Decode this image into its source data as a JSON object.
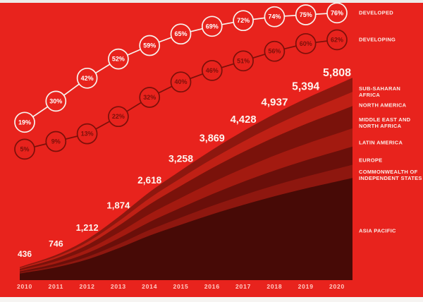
{
  "colors": {
    "background": "#e8231d",
    "developed_line": "#f8f3ee",
    "developed_text": "#ffffff",
    "developing_line": "#7c100a",
    "developing_text": "#7c100a",
    "total_label_text": "#fdf4ef",
    "year_text": "#ffccc5",
    "legend_text": "#fbeee9"
  },
  "chart_data": {
    "type": "area",
    "years": [
      "2010",
      "2011",
      "2012",
      "2013",
      "2014",
      "2015",
      "2016",
      "2017",
      "2018",
      "2019",
      "2020"
    ],
    "totals": [
      436,
      746,
      1212,
      1874,
      2618,
      3258,
      3869,
      4428,
      4937,
      5394,
      5808
    ],
    "total_labels": [
      "436",
      "746",
      "1,212",
      "1,874",
      "2,618",
      "3,258",
      "3,869",
      "4,428",
      "4,937",
      "5,394",
      "5,808"
    ],
    "regions": [
      {
        "label": "SUB-SAHARAN\nAFRICA",
        "share": 0.07,
        "color": "#8e170f"
      },
      {
        "label": "NORTH AMERICA",
        "share": 0.07,
        "color": "#bf2015"
      },
      {
        "label": "MIDDLE EAST AND\nNORTH AFRICA",
        "share": 0.11,
        "color": "#7a120b"
      },
      {
        "label": "LATIN AMERICA",
        "share": 0.09,
        "color": "#a31a10"
      },
      {
        "label": "EUROPE",
        "share": 0.09,
        "color": "#6a0f0a"
      },
      {
        "label": "COMMONWEALTH OF\nINDEPENDENT STATES",
        "share": 0.065,
        "color": "#8e170f"
      },
      {
        "label": "ASIA PACIFIC",
        "share": 0.505,
        "color": "#470a06"
      }
    ],
    "series": [
      {
        "name": "DEVELOPED",
        "values": [
          19,
          30,
          42,
          52,
          59,
          65,
          69,
          72,
          74,
          75,
          76
        ]
      },
      {
        "name": "DEVELOPING",
        "values": [
          5,
          9,
          13,
          22,
          32,
          40,
          46,
          51,
          56,
          60,
          62
        ]
      }
    ],
    "legend_position": "right",
    "grid": false,
    "xlabel": "",
    "ylabel": ""
  }
}
